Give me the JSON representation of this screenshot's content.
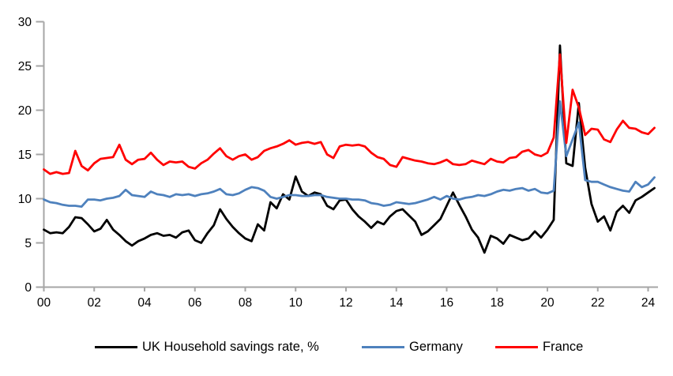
{
  "chart_data": {
    "type": "line",
    "title": "",
    "xlabel": "",
    "ylabel": "",
    "x_period": "quarterly",
    "x_first": "2000 Q1",
    "x_last": "2024 Q2",
    "ylim": [
      0,
      30
    ],
    "yticks": [
      0,
      5,
      10,
      15,
      20,
      25,
      30
    ],
    "xtick_labels": [
      "00",
      "02",
      "04",
      "06",
      "08",
      "10",
      "12",
      "14",
      "16",
      "18",
      "20",
      "22",
      "24"
    ],
    "grid": false,
    "legend_position": "bottom",
    "axis_color": "#A6A6A6",
    "series": [
      {
        "name": "UK Household savings rate, %",
        "color": "#000000",
        "values": [
          6.5,
          6.1,
          6.2,
          6.1,
          6.8,
          7.9,
          7.8,
          7.1,
          6.3,
          6.6,
          7.6,
          6.5,
          5.9,
          5.2,
          4.7,
          5.2,
          5.5,
          5.9,
          6.1,
          5.8,
          5.9,
          5.6,
          6.2,
          6.4,
          5.3,
          5.0,
          6.1,
          7.0,
          8.8,
          7.7,
          6.8,
          6.1,
          5.5,
          5.2,
          7.1,
          6.4,
          9.6,
          8.9,
          10.5,
          9.9,
          12.5,
          10.8,
          10.3,
          10.7,
          10.5,
          9.2,
          8.8,
          9.8,
          9.9,
          8.8,
          8.0,
          7.4,
          6.7,
          7.4,
          7.1,
          8.0,
          8.6,
          8.8,
          8.1,
          7.4,
          5.9,
          6.3,
          7.0,
          7.7,
          9.2,
          10.7,
          9.3,
          8.0,
          6.5,
          5.6,
          3.9,
          5.8,
          5.5,
          4.9,
          5.9,
          5.6,
          5.3,
          5.5,
          6.3,
          5.6,
          6.5,
          7.6,
          27.3,
          14.0,
          13.7,
          20.8,
          13.5,
          9.4,
          7.4,
          8.0,
          6.4,
          8.5,
          9.2,
          8.4,
          9.8,
          10.2,
          10.7,
          11.2
        ]
      },
      {
        "name": "Germany",
        "color": "#4E81BD",
        "values": [
          9.9,
          9.6,
          9.5,
          9.3,
          9.2,
          9.2,
          9.1,
          9.9,
          9.9,
          9.8,
          10.0,
          10.1,
          10.3,
          11.0,
          10.4,
          10.3,
          10.2,
          10.8,
          10.5,
          10.4,
          10.2,
          10.5,
          10.4,
          10.5,
          10.3,
          10.5,
          10.6,
          10.8,
          11.1,
          10.5,
          10.4,
          10.6,
          11.0,
          11.3,
          11.2,
          10.9,
          10.2,
          10.0,
          10.2,
          10.4,
          10.4,
          10.3,
          10.3,
          10.4,
          10.4,
          10.2,
          10.1,
          10.0,
          10.0,
          9.9,
          9.9,
          9.8,
          9.5,
          9.4,
          9.2,
          9.3,
          9.6,
          9.5,
          9.4,
          9.5,
          9.7,
          9.9,
          10.2,
          9.9,
          10.3,
          10.0,
          9.9,
          10.1,
          10.2,
          10.4,
          10.3,
          10.5,
          10.8,
          11.0,
          10.9,
          11.1,
          11.2,
          10.9,
          11.1,
          10.7,
          10.6,
          10.9,
          21.0,
          14.8,
          16.7,
          18.6,
          12.1,
          11.9,
          11.9,
          11.6,
          11.3,
          11.1,
          10.9,
          10.8,
          11.9,
          11.3,
          11.6,
          12.4
        ]
      },
      {
        "name": "France",
        "color": "#FF0000",
        "values": [
          13.3,
          12.8,
          13.0,
          12.8,
          12.9,
          15.4,
          13.7,
          13.2,
          14.0,
          14.5,
          14.6,
          14.7,
          16.1,
          14.4,
          13.9,
          14.4,
          14.5,
          15.2,
          14.4,
          13.8,
          14.2,
          14.1,
          14.2,
          13.6,
          13.4,
          14.0,
          14.4,
          15.1,
          15.7,
          14.8,
          14.4,
          14.8,
          15.0,
          14.4,
          14.7,
          15.4,
          15.7,
          15.9,
          16.2,
          16.6,
          16.1,
          16.3,
          16.4,
          16.2,
          16.4,
          15.0,
          14.6,
          15.9,
          16.1,
          16.0,
          16.1,
          15.9,
          15.2,
          14.7,
          14.5,
          13.8,
          13.6,
          14.7,
          14.5,
          14.3,
          14.2,
          14.0,
          13.9,
          14.1,
          14.4,
          13.9,
          13.8,
          13.9,
          14.3,
          14.1,
          13.9,
          14.5,
          14.2,
          14.1,
          14.6,
          14.7,
          15.3,
          15.5,
          15.0,
          14.8,
          15.2,
          16.9,
          26.3,
          16.3,
          22.3,
          20.3,
          17.2,
          17.9,
          17.8,
          16.7,
          16.4,
          17.8,
          18.8,
          18.0,
          17.9,
          17.5,
          17.3,
          18.0
        ]
      }
    ]
  }
}
